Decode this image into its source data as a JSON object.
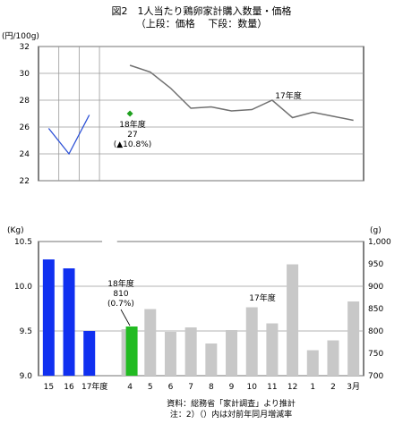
{
  "header": {
    "title": "図2　1人当たり鶏卵家計購入数量・価格",
    "subtitle": "（上段：価格　 下段：数量）"
  },
  "footer": {
    "source": "資料：総務省「家計調査」より推計",
    "note": "注：2）（）内は対前年同月増減率"
  },
  "colors": {
    "line_current": "#2a4fd6",
    "line_prev": "#707070",
    "marker": "#1fa01f",
    "bar_annual": "#1030f0",
    "bar_highlight": "#22bb22",
    "bar_prev": "#c8c8c8",
    "grid": "#9a9a9a"
  },
  "chart_data": [
    {
      "type": "line",
      "title": "価格",
      "ylabel": "(円/100g)",
      "ylim": [
        22,
        32
      ],
      "yticks": [
        "22",
        "24",
        "26",
        "28",
        "30",
        "32"
      ],
      "grid": true,
      "series": [
        {
          "values": [
            25.9,
            24.0,
            26.9
          ]
        },
        {
          "name": "17年度",
          "values": [
            30.6,
            30.1,
            28.9,
            27.4,
            27.5,
            27.2,
            27.3,
            28.0,
            26.7,
            27.1,
            26.8,
            26.5
          ]
        },
        {
          "name": "18年度",
          "values": [
            27.0
          ]
        }
      ],
      "annotations": [
        {
          "label": "17年度"
        },
        {
          "label": "18年度",
          "value": "27",
          "change": "(▲10.8%)"
        }
      ]
    },
    {
      "type": "bar",
      "categories": [
        "15",
        "16",
        "17年度",
        "",
        "4",
        "5",
        "6",
        "7",
        "8",
        "9",
        "10",
        "11",
        "12",
        "1",
        "2",
        "3月"
      ],
      "ylabel_left": "(Kg)",
      "ylabel_right": "(g)",
      "ylim_left": [
        9.0,
        10.5
      ],
      "ylim_right": [
        700,
        1000
      ],
      "yticks_left": [
        "9.0",
        "9.5",
        "10.0",
        "10.5"
      ],
      "yticks_right": [
        "700",
        "750",
        "800",
        "850",
        "900",
        "950",
        "1,000"
      ],
      "annual": {
        "values": [
          10.3,
          10.2,
          9.5
        ]
      },
      "monthly": {
        "name": "17年度",
        "values": [
          804,
          849,
          798,
          808,
          772,
          802,
          853,
          817,
          949,
          757,
          779,
          866
        ]
      },
      "current": {
        "name": "18年度",
        "values": [
          810
        ]
      },
      "annotations": [
        {
          "label": "17年度"
        },
        {
          "label": "18年度",
          "value": "810",
          "change": "(0.7%)"
        }
      ]
    }
  ]
}
